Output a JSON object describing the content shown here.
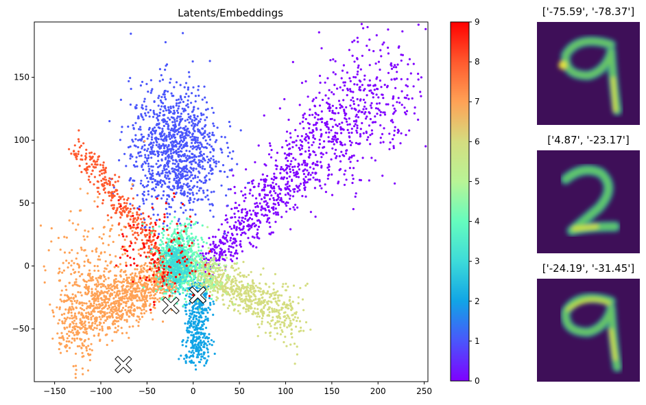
{
  "chart_data": [
    {
      "type": "scatter",
      "title": "Latents/Embeddings",
      "xlabel": "",
      "ylabel": "",
      "xlim": [
        -172,
        254
      ],
      "ylim": [
        -92,
        194
      ],
      "xticks": [
        -150,
        -100,
        -50,
        0,
        50,
        100,
        150,
        200,
        250
      ],
      "yticks": [
        -50,
        0,
        50,
        100,
        150
      ],
      "grid": false,
      "colormap": "rainbow",
      "colorbar": {
        "range": [
          0,
          9
        ],
        "ticks": [
          "0",
          "1",
          "2",
          "3",
          "4",
          "5",
          "6",
          "7",
          "8",
          "9"
        ]
      },
      "clusters": [
        {
          "label": 0,
          "color": "#7f00ff",
          "center": [
            90,
            40
          ],
          "spread": "diagonal band from (10,0) to (220,160)"
        },
        {
          "label": 1,
          "color": "#4a56fb",
          "center": [
            -20,
            95
          ],
          "spread": "x -70..35, y 30..160"
        },
        {
          "label": 2,
          "color": "#11a4e6",
          "center": [
            5,
            -40
          ],
          "spread": "x -10..15, y -80..-5"
        },
        {
          "label": 3,
          "color": "#3ddbd9",
          "center": [
            -20,
            10
          ],
          "spread": "small dense core"
        },
        {
          "label": 4,
          "color": "#65fcbe",
          "center": [
            -15,
            5
          ],
          "spread": "x -40..25, y -20..50"
        },
        {
          "label": 5,
          "color": "#b8f496",
          "center": [
            15,
            -5
          ],
          "spread": "sparse core"
        },
        {
          "label": 6,
          "color": "#d4dd80",
          "center": [
            50,
            -20
          ],
          "spread": "band from (0,-5) to (120,-45)"
        },
        {
          "label": 7,
          "color": "#ffa256",
          "center": [
            -70,
            -15
          ],
          "spread": "x -145..-20, y -50..20, tail to (-150,60)"
        },
        {
          "label": 8,
          "color": "#ff5a2e",
          "center": [
            -75,
            55
          ],
          "spread": "arm from (-130,100) to (-20,-15)"
        },
        {
          "label": 9,
          "color": "#ff0000",
          "center": [
            -35,
            10
          ],
          "spread": "sparse, x -90..20, y -60..45"
        }
      ],
      "markers": [
        {
          "symbol": "X",
          "x": -75.59,
          "y": -78.37
        },
        {
          "symbol": "X",
          "x": 4.87,
          "y": -23.17
        },
        {
          "symbol": "X",
          "x": -24.19,
          "y": -31.45
        }
      ]
    }
  ],
  "side_panels": [
    {
      "title": "['-75.59', '-78.37']",
      "digit": "9"
    },
    {
      "title": "['4.87', '-23.17']",
      "digit": "2"
    },
    {
      "title": "['-24.19', '-31.45']",
      "digit": "9"
    }
  ]
}
